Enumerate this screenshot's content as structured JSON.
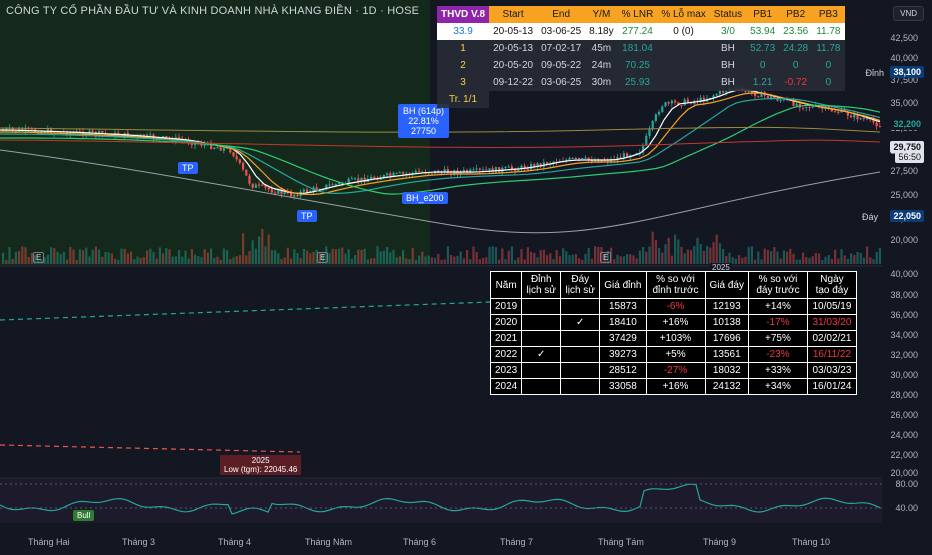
{
  "chart": {
    "title": "CÔNG TY CỔ PHẦN ĐẦU TƯ VÀ KINH DOANH NHÀ KHANG ĐIỀN · 1D · HOSE",
    "currency": "VND",
    "price_axis": [
      "42,500",
      "40,000",
      "37,500",
      "35,000",
      "32,500",
      "30,000",
      "27,500",
      "25,000",
      "22,500",
      "20,000"
    ],
    "lower_axis": [
      "40,000",
      "38,000",
      "36,000",
      "34,000",
      "32,000",
      "30,000",
      "28,000",
      "26,000",
      "24,000",
      "22,000",
      "20,000"
    ],
    "osc_axis": [
      "80.00",
      "40.00"
    ],
    "x_labels": [
      "Tháng Hai",
      "Tháng 3",
      "Tháng 4",
      "Tháng Năm",
      "Tháng 6",
      "Tháng 7",
      "Tháng Tám",
      "Tháng 9",
      "Tháng 10"
    ],
    "tags": {
      "dinh_label": "Đỉnh",
      "dinh_value": "38,100",
      "current": "32,200",
      "ma_value": "29,750",
      "countdown": "56:50",
      "day_label": "Đáy",
      "day_value": "22,050"
    },
    "annotations": {
      "bh": "BH (614p)",
      "bh_pct": "22.81%",
      "bh_price": "27750",
      "bh_e200": "BH_e200",
      "tp1": "TP",
      "tp2": "TP",
      "year_top": "2025",
      "year_low": "2025",
      "low_note": "Low (tgm): 22045.46",
      "bull": "Bull",
      "e_marker": "E"
    }
  },
  "top_table": {
    "headers": [
      "THVD V.8",
      "Start",
      "End",
      "Y/M",
      "% LNR",
      "% Lỗ max",
      "Status",
      "PB1",
      "PB2",
      "PB3"
    ],
    "summary": [
      "33.9",
      "20-05-13",
      "03-06-25",
      "8.18y",
      "277.24",
      "0 (0)",
      "3/0",
      "53.94",
      "23.56",
      "11.78"
    ],
    "rows": [
      [
        "1",
        "20-05-13",
        "07-02-17",
        "45m",
        "181.04",
        "",
        "BH",
        "52.73",
        "24.28",
        "11.78"
      ],
      [
        "2",
        "20-05-20",
        "09-05-22",
        "24m",
        "70.25",
        "",
        "BH",
        "0",
        "0",
        "0"
      ],
      [
        "3",
        "09-12-22",
        "03-06-25",
        "30m",
        "25.93",
        "",
        "BH",
        "1.21",
        "-0.72",
        "0"
      ]
    ],
    "footer": "Tr. 1/1"
  },
  "history_table": {
    "headers": [
      "Năm",
      "Đỉnh lịch sử",
      "Đáy lịch sử",
      "Giá đỉnh",
      "% so với đỉnh trước",
      "Giá đáy",
      "% so với đáy trước",
      "Ngày tạo đáy"
    ],
    "rows": [
      [
        "2019",
        "",
        "",
        "15873",
        "-6%",
        "12193",
        "+14%",
        "10/05/19"
      ],
      [
        "2020",
        "",
        "✓",
        "18410",
        "+16%",
        "10138",
        "-17%",
        "31/03/20"
      ],
      [
        "2021",
        "",
        "",
        "37429",
        "+103%",
        "17696",
        "+75%",
        "02/02/21"
      ],
      [
        "2022",
        "✓",
        "",
        "39273",
        "+5%",
        "13561",
        "-23%",
        "16/11/22"
      ],
      [
        "2023",
        "",
        "",
        "28512",
        "-27%",
        "18032",
        "+33%",
        "03/03/23"
      ],
      [
        "2024",
        "",
        "",
        "33058",
        "+16%",
        "24132",
        "+34%",
        "16/01/24"
      ]
    ]
  },
  "colors": {
    "up": "#26a69a",
    "down": "#ef5350",
    "accent": "#2962ff",
    "orange": "#f7a221",
    "purple": "#8e24aa"
  }
}
